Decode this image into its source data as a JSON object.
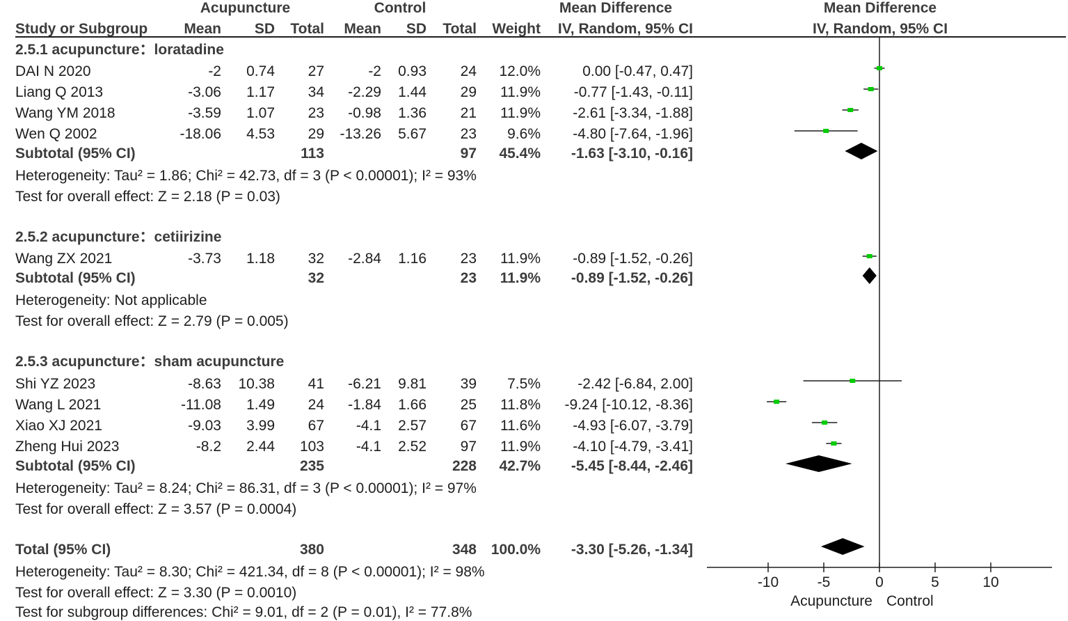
{
  "header": {
    "acupuncture": "Acupuncture",
    "control": "Control",
    "md_top": "Mean Difference",
    "plot_top": "Mean Difference",
    "study": "Study or Subgroup",
    "mean1": "Mean",
    "sd1": "SD",
    "total1": "Total",
    "mean2": "Mean",
    "sd2": "SD",
    "total2": "Total",
    "weight": "Weight",
    "md_sub": "IV, Random, 95% CI",
    "plot_sub": "IV, Random, 95% CI"
  },
  "groups": [
    {
      "title": "2.5.1 acupuncture：loratadine",
      "studies": [
        {
          "name": "DAI N 2020",
          "m1": "-2",
          "sd1": "0.74",
          "n1": "27",
          "m2": "-2",
          "sd2": "0.93",
          "n2": "24",
          "w": "12.0%",
          "ci": "0.00 [-0.47, 0.47]"
        },
        {
          "name": "Liang Q 2013",
          "m1": "-3.06",
          "sd1": "1.17",
          "n1": "34",
          "m2": "-2.29",
          "sd2": "1.44",
          "n2": "29",
          "w": "11.9%",
          "ci": "-0.77 [-1.43, -0.11]"
        },
        {
          "name": "Wang YM 2018",
          "m1": "-3.59",
          "sd1": "1.07",
          "n1": "23",
          "m2": "-0.98",
          "sd2": "1.36",
          "n2": "21",
          "w": "11.9%",
          "ci": "-2.61 [-3.34, -1.88]"
        },
        {
          "name": "Wen Q 2002",
          "m1": "-18.06",
          "sd1": "4.53",
          "n1": "29",
          "m2": "-13.26",
          "sd2": "5.67",
          "n2": "23",
          "w": "9.6%",
          "ci": "-4.80 [-7.64, -1.96]"
        }
      ],
      "subtotal": {
        "label": "Subtotal (95% CI)",
        "n1": "113",
        "n2": "97",
        "w": "45.4%",
        "ci": "-1.63 [-3.10, -0.16]"
      },
      "het": "Heterogeneity: Tau² = 1.86; Chi² = 42.73, df = 3 (P < 0.00001); I² = 93%",
      "test": "Test for overall effect: Z = 2.18 (P = 0.03)"
    },
    {
      "title": "2.5.2 acupuncture：cetiirizine",
      "studies": [
        {
          "name": "Wang ZX 2021",
          "m1": "-3.73",
          "sd1": "1.18",
          "n1": "32",
          "m2": "-2.84",
          "sd2": "1.16",
          "n2": "23",
          "w": "11.9%",
          "ci": "-0.89 [-1.52, -0.26]"
        }
      ],
      "subtotal": {
        "label": "Subtotal (95% CI)",
        "n1": "32",
        "n2": "23",
        "w": "11.9%",
        "ci": "-0.89 [-1.52, -0.26]"
      },
      "het": "Heterogeneity: Not applicable",
      "test": "Test for overall effect: Z = 2.79 (P = 0.005)"
    },
    {
      "title": "2.5.3 acupuncture：sham acupuncture",
      "studies": [
        {
          "name": "Shi YZ 2023",
          "m1": "-8.63",
          "sd1": "10.38",
          "n1": "41",
          "m2": "-6.21",
          "sd2": "9.81",
          "n2": "39",
          "w": "7.5%",
          "ci": "-2.42 [-6.84, 2.00]"
        },
        {
          "name": "Wang L 2021",
          "m1": "-11.08",
          "sd1": "1.49",
          "n1": "24",
          "m2": "-1.84",
          "sd2": "1.66",
          "n2": "25",
          "w": "11.8%",
          "ci": "-9.24 [-10.12, -8.36]"
        },
        {
          "name": "Xiao XJ 2021",
          "m1": "-9.03",
          "sd1": "3.99",
          "n1": "67",
          "m2": "-4.1",
          "sd2": "2.57",
          "n2": "67",
          "w": "11.6%",
          "ci": "-4.93 [-6.07, -3.79]"
        },
        {
          "name": "Zheng Hui 2023",
          "m1": "-8.2",
          "sd1": "2.44",
          "n1": "103",
          "m2": "-4.1",
          "sd2": "2.52",
          "n2": "97",
          "w": "11.9%",
          "ci": "-4.10 [-4.79, -3.41]"
        }
      ],
      "subtotal": {
        "label": "Subtotal (95% CI)",
        "n1": "235",
        "n2": "228",
        "w": "42.7%",
        "ci": "-5.45 [-8.44, -2.46]"
      },
      "het": "Heterogeneity: Tau² = 8.24; Chi² = 86.31, df = 3 (P < 0.00001); I² = 97%",
      "test": "Test for overall effect: Z = 3.57 (P = 0.0004)"
    }
  ],
  "total": {
    "label": "Total (95% CI)",
    "n1": "380",
    "n2": "348",
    "w": "100.0%",
    "ci": "-3.30 [-5.26, -1.34]",
    "het": "Heterogeneity: Tau² = 8.30; Chi² = 421.34, df = 8 (P < 0.00001); I² = 98%",
    "test": "Test for overall effect: Z = 3.30 (P = 0.0010)",
    "subgroup": "Test for subgroup differences: Chi² = 9.01, df = 2 (P = 0.01), I² = 77.8%"
  },
  "axis": {
    "ticks": [
      "-10",
      "-5",
      "0",
      "5",
      "10"
    ],
    "favors_left": "Acupuncture",
    "favors_right": "Control"
  },
  "colors": {
    "study_marker": "#00cc00",
    "line": "#1e1e1e",
    "diamond": "#000000"
  },
  "chart_data": {
    "type": "forest",
    "title": "Mean Difference IV, Random, 95% CI",
    "xlim": [
      -15,
      15
    ],
    "xticks": [
      -10,
      -5,
      0,
      5,
      10
    ],
    "xlabel_left": "Acupuncture",
    "xlabel_right": "Control",
    "studies": [
      {
        "name": "DAI N 2020",
        "group": "2.5.1",
        "md": 0.0,
        "lo": -0.47,
        "hi": 0.47,
        "weight": 12.0
      },
      {
        "name": "Liang Q 2013",
        "group": "2.5.1",
        "md": -0.77,
        "lo": -1.43,
        "hi": -0.11,
        "weight": 11.9
      },
      {
        "name": "Wang YM 2018",
        "group": "2.5.1",
        "md": -2.61,
        "lo": -3.34,
        "hi": -1.88,
        "weight": 11.9
      },
      {
        "name": "Wen Q 2002",
        "group": "2.5.1",
        "md": -4.8,
        "lo": -7.64,
        "hi": -1.96,
        "weight": 9.6
      },
      {
        "name": "Wang ZX 2021",
        "group": "2.5.2",
        "md": -0.89,
        "lo": -1.52,
        "hi": -0.26,
        "weight": 11.9
      },
      {
        "name": "Shi YZ 2023",
        "group": "2.5.3",
        "md": -2.42,
        "lo": -6.84,
        "hi": 2.0,
        "weight": 7.5
      },
      {
        "name": "Wang L 2021",
        "group": "2.5.3",
        "md": -9.24,
        "lo": -10.12,
        "hi": -8.36,
        "weight": 11.8
      },
      {
        "name": "Xiao XJ 2021",
        "group": "2.5.3",
        "md": -4.93,
        "lo": -6.07,
        "hi": -3.79,
        "weight": 11.6
      },
      {
        "name": "Zheng Hui 2023",
        "group": "2.5.3",
        "md": -4.1,
        "lo": -4.79,
        "hi": -3.41,
        "weight": 11.9
      }
    ],
    "summaries": [
      {
        "name": "Subtotal 2.5.1",
        "md": -1.63,
        "lo": -3.1,
        "hi": -0.16
      },
      {
        "name": "Subtotal 2.5.2",
        "md": -0.89,
        "lo": -1.52,
        "hi": -0.26
      },
      {
        "name": "Subtotal 2.5.3",
        "md": -5.45,
        "lo": -8.44,
        "hi": -2.46
      },
      {
        "name": "Total",
        "md": -3.3,
        "lo": -5.26,
        "hi": -1.34
      }
    ]
  }
}
